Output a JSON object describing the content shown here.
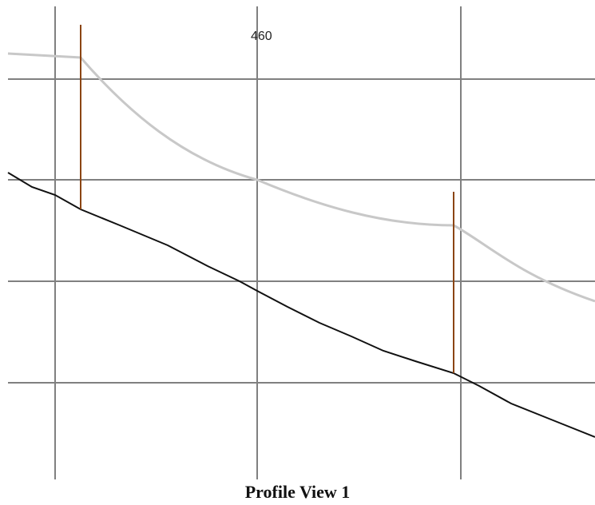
{
  "figure": {
    "caption": "Profile View 1",
    "station_label": "460"
  },
  "colors": {
    "grid": "#808080",
    "ground_profile": "#111111",
    "design_profile": "#c8c8c8",
    "marker": "#8B4513"
  }
}
